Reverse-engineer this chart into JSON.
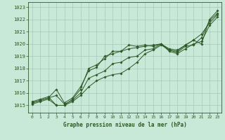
{
  "title": "Graphe pression niveau de la mer (hPa)",
  "background_color": "#c8e8d8",
  "grid_color": "#a8c8b8",
  "line_color": "#2d5a27",
  "marker_color": "#2d5a27",
  "xlim": [
    -0.5,
    23.5
  ],
  "ylim": [
    1014.4,
    1023.4
  ],
  "yticks": [
    1015,
    1016,
    1017,
    1018,
    1019,
    1020,
    1021,
    1022,
    1023
  ],
  "xticks": [
    0,
    1,
    2,
    3,
    4,
    5,
    6,
    7,
    8,
    9,
    10,
    11,
    12,
    13,
    14,
    15,
    16,
    17,
    18,
    19,
    20,
    21,
    22,
    23
  ],
  "series": [
    [
      1015.3,
      1015.5,
      1015.7,
      1015.0,
      1015.0,
      1015.5,
      1016.3,
      1018.0,
      1018.3,
      1018.8,
      1019.4,
      1019.4,
      1019.9,
      1019.8,
      1019.9,
      1019.8,
      1020.0,
      1019.5,
      1019.4,
      1019.9,
      1020.3,
      1020.0,
      1022.0,
      1022.7
    ],
    [
      1015.1,
      1015.3,
      1015.5,
      1015.0,
      1015.0,
      1015.3,
      1015.8,
      1016.5,
      1017.0,
      1017.3,
      1017.5,
      1017.6,
      1018.0,
      1018.5,
      1019.2,
      1019.5,
      1019.9,
      1019.5,
      1019.3,
      1019.8,
      1019.9,
      1020.5,
      1021.9,
      1022.5
    ],
    [
      1015.2,
      1015.4,
      1015.6,
      1015.8,
      1015.1,
      1015.4,
      1016.0,
      1017.2,
      1017.5,
      1017.8,
      1018.4,
      1018.5,
      1018.9,
      1019.0,
      1019.5,
      1019.6,
      1020.0,
      1019.4,
      1019.2,
      1019.6,
      1020.0,
      1020.2,
      1021.5,
      1022.2
    ],
    [
      1015.2,
      1015.4,
      1015.6,
      1016.3,
      1015.2,
      1015.6,
      1016.5,
      1017.8,
      1018.1,
      1019.0,
      1019.2,
      1019.4,
      1019.6,
      1019.7,
      1019.8,
      1019.9,
      1020.0,
      1019.6,
      1019.5,
      1019.9,
      1020.3,
      1020.8,
      1021.7,
      1022.4
    ]
  ]
}
